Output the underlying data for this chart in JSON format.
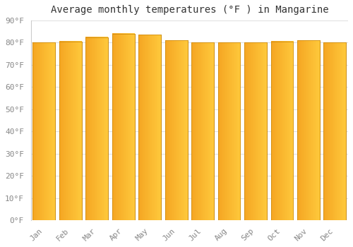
{
  "title": "Average monthly temperatures (°F ) in Mangarine",
  "months": [
    "Jan",
    "Feb",
    "Mar",
    "Apr",
    "May",
    "Jun",
    "Jul",
    "Aug",
    "Sep",
    "Oct",
    "Nov",
    "Dec"
  ],
  "values": [
    80,
    80.5,
    82.5,
    84,
    83.5,
    81,
    80,
    80,
    80,
    80.5,
    81,
    80
  ],
  "ylim": [
    0,
    90
  ],
  "yticks": [
    0,
    10,
    20,
    30,
    40,
    50,
    60,
    70,
    80,
    90
  ],
  "bar_color_left": "#F5A623",
  "bar_color_right": "#FFC93C",
  "bar_edge_color": "#C8860A",
  "background_color": "#ffffff",
  "plot_bg_color": "#ffffff",
  "grid_color": "#e0e0e0",
  "title_fontsize": 10,
  "tick_fontsize": 8,
  "bar_width": 0.85
}
